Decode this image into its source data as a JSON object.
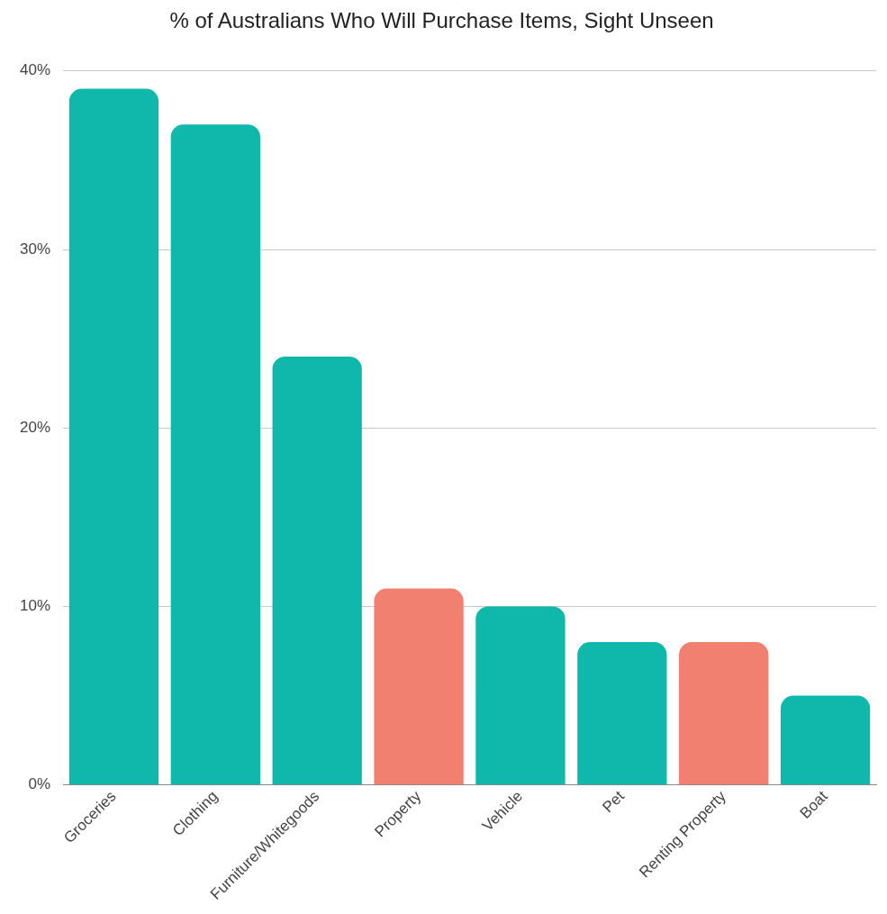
{
  "chart_data": {
    "type": "bar",
    "title": "% of Australians Who Will Purchase Items, Sight Unseen",
    "categories": [
      "Groceries",
      "Clothing",
      "Furniture/Whitegoods",
      "Property",
      "Vehicle",
      "Pet",
      "Renting Property",
      "Boat"
    ],
    "values": [
      39,
      37,
      24,
      11,
      10,
      8,
      8,
      5
    ],
    "colors": [
      "#10b8ac",
      "#10b8ac",
      "#10b8ac",
      "#f28070",
      "#10b8ac",
      "#10b8ac",
      "#f28070",
      "#10b8ac"
    ],
    "ylim": [
      0,
      40
    ],
    "yticks": [
      {
        "value": 0,
        "label": "0%"
      },
      {
        "value": 10,
        "label": "10%"
      },
      {
        "value": 20,
        "label": "20%"
      },
      {
        "value": 30,
        "label": "30%"
      },
      {
        "value": 40,
        "label": "40%"
      }
    ],
    "grid": "y",
    "legend": false
  }
}
